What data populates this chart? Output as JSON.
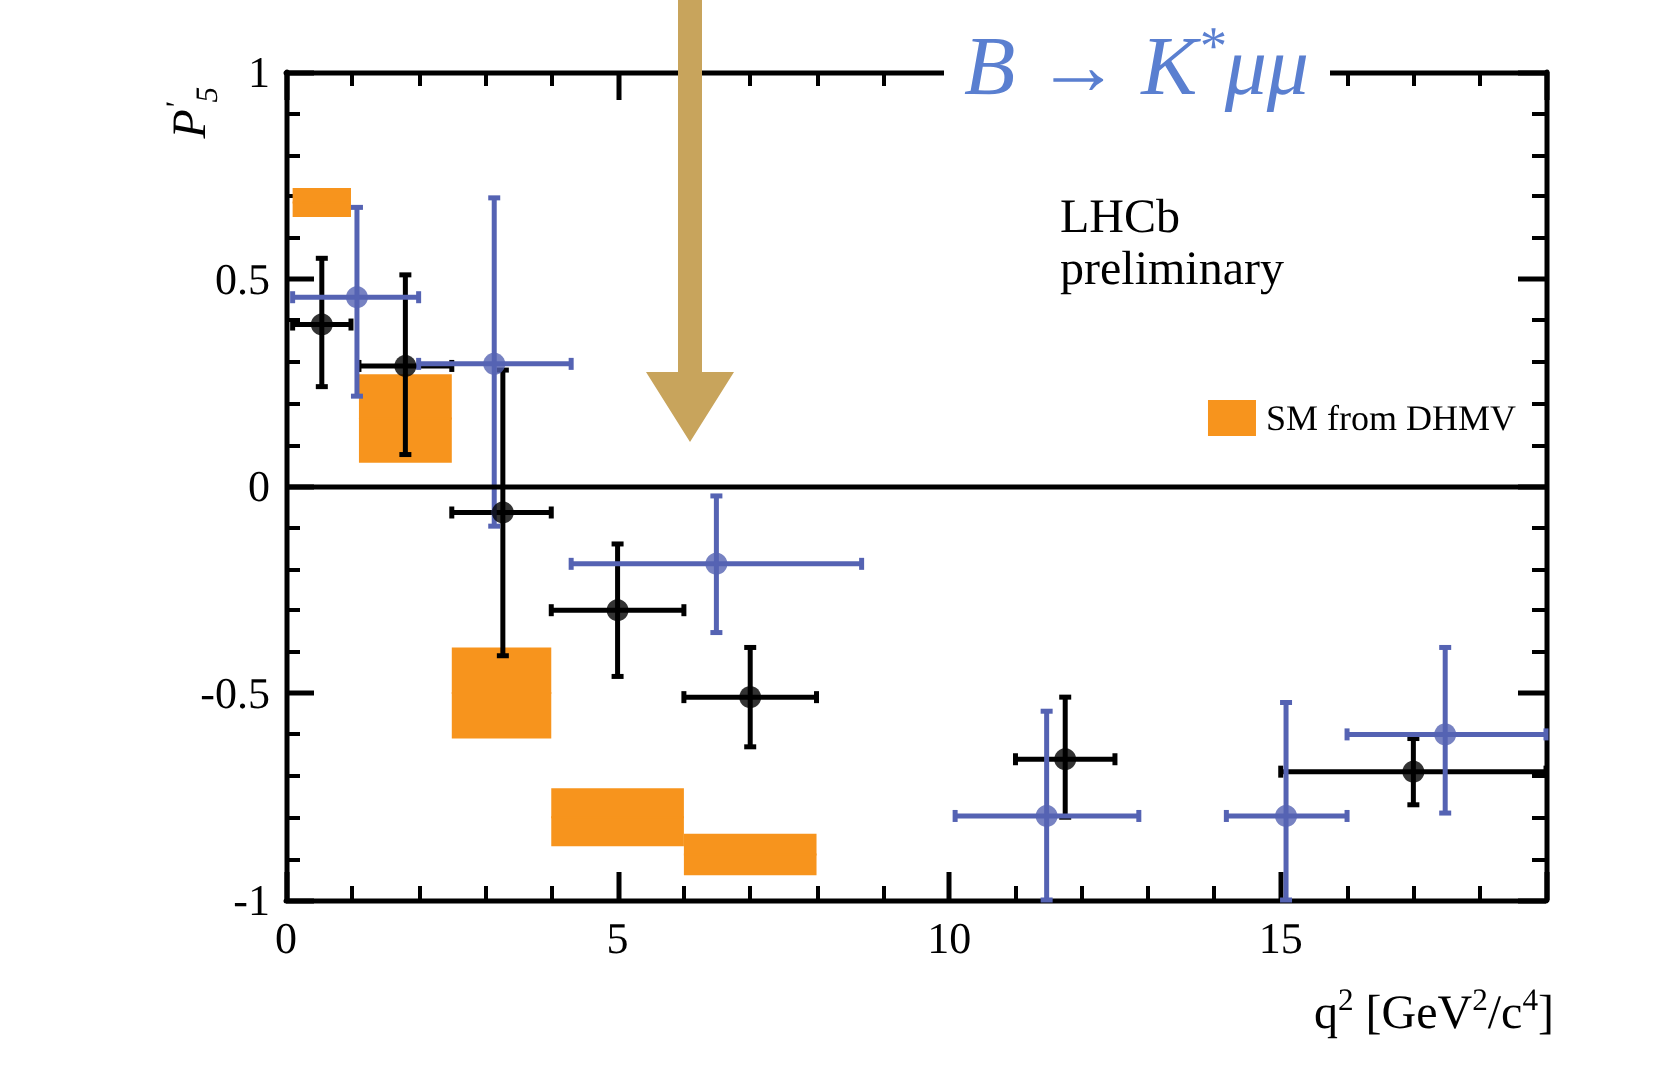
{
  "chart_data": {
    "type": "scatter",
    "title": "B → K$^{*}$μμ",
    "xlabel": "q$^{2}$ [GeV$^{2}$/c$^{4}$]",
    "ylabel": "P$^{'}$$_{5}$",
    "annotations": [
      "LHCb preliminary"
    ],
    "xlim": [
      0,
      19
    ],
    "xticks": [
      0,
      5,
      10,
      15
    ],
    "ylim": [
      -1,
      1
    ],
    "yticks": [
      -1,
      -0.5,
      0,
      0.5,
      1
    ],
    "grid": false,
    "legend": "right",
    "marker": "circle",
    "ref_lines": [
      {
        "axis": "y",
        "value": 0,
        "color": "#000000"
      }
    ],
    "series": [
      {
        "type": "bar",
        "name": "SM from DHMV",
        "color": "#f7941d",
        "x": [
          0.54,
          1.8,
          3.25,
          5,
          7
        ],
        "base": [
          0.65,
          0.056,
          -0.61,
          -0.87,
          -0.94
        ],
        "values": [
          0.07,
          0.214,
          0.22,
          0.14,
          0.1
        ],
        "xerrors": [
          0.44,
          0.7,
          0.75,
          1,
          1
        ]
      },
      {
        "color": "#000000",
        "x": [
          0.54,
          1.8,
          3.27,
          5,
          7,
          11.75,
          17
        ],
        "values": [
          0.39,
          0.29,
          -0.064,
          -0.3,
          -0.51,
          -0.66,
          -0.69
        ],
        "xerrors": [
          [
            0.1,
            0.98
          ],
          [
            1.1,
            2.5
          ],
          [
            2.5,
            4
          ],
          [
            4,
            6
          ],
          [
            6,
            8
          ],
          [
            11,
            12.5
          ],
          [
            15,
            19
          ]
        ],
        "errors": [
          [
            0.24,
            0.55
          ],
          [
            0.076,
            0.51
          ],
          [
            -0.41,
            0.28
          ],
          [
            -0.46,
            -0.14
          ],
          [
            -0.63,
            -0.39
          ],
          [
            -0.8,
            -0.51
          ],
          [
            -0.77,
            -0.61
          ]
        ]
      },
      {
        "color": "#5563b3",
        "x": [
          1.07,
          3.14,
          6.49,
          11.47,
          15.08,
          17.48
        ],
        "values": [
          0.456,
          0.295,
          -0.188,
          -0.797,
          -0.797,
          -0.6
        ],
        "xerrors": [
          [
            0.1,
            2
          ],
          [
            2,
            4.3
          ],
          [
            4.3,
            8.68
          ],
          [
            10.09,
            12.86
          ],
          [
            14.18,
            16
          ],
          [
            16,
            19
          ]
        ],
        "errors": [
          [
            0.217,
            0.673
          ],
          [
            -0.097,
            0.696
          ],
          [
            -0.354,
            -0.024
          ],
          [
            -1,
            -0.544
          ],
          [
            -1,
            -0.523
          ],
          [
            -0.79,
            -0.39
          ]
        ]
      }
    ]
  }
}
